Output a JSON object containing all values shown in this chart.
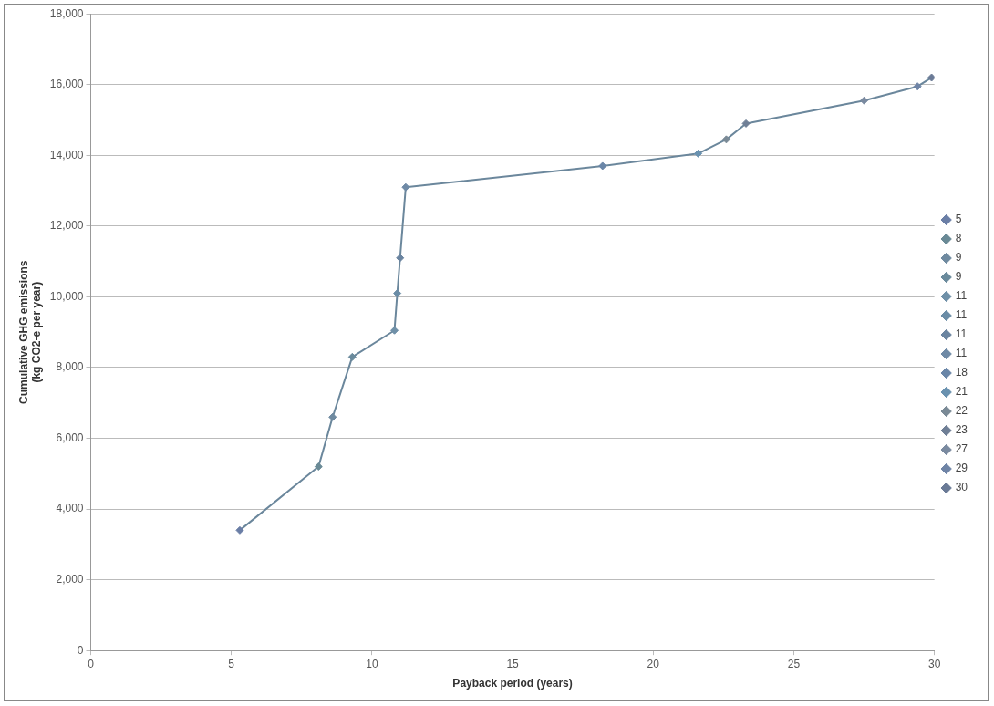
{
  "chart_data": {
    "type": "scatter",
    "xlabel": "Payback period (years)",
    "ylabel": "Cumulative GHG emissions\n(kg CO2-e per year)",
    "xlim": [
      0,
      30
    ],
    "xticks": [
      0,
      5,
      10,
      15,
      20,
      25,
      30
    ],
    "ylim": [
      0,
      18000
    ],
    "yticks": [
      {
        "value": 0,
        "label": "0"
      },
      {
        "value": 2000,
        "label": "2,000"
      },
      {
        "value": 4000,
        "label": "4,000"
      },
      {
        "value": 6000,
        "label": "6,000"
      },
      {
        "value": 8000,
        "label": "8,000"
      },
      {
        "value": 10000,
        "label": "10,000"
      },
      {
        "value": 12000,
        "label": "12,000"
      },
      {
        "value": 14000,
        "label": "14,000"
      },
      {
        "value": 16000,
        "label": "16,000"
      },
      {
        "value": 18000,
        "label": "18,000"
      }
    ],
    "grid": "y",
    "legend": "right",
    "marker": "diamond",
    "series": [
      {
        "type": "line",
        "marker": "none",
        "color": "#6b879c",
        "x": [
          5.3,
          8.1,
          8.6,
          9.3,
          10.8,
          10.9,
          11.0,
          11.2,
          18.2,
          21.6,
          22.6,
          23.3,
          27.5,
          29.4,
          29.9
        ],
        "values": [
          3400,
          5200,
          6600,
          8300,
          9050,
          10100,
          11100,
          13100,
          13700,
          14050,
          14450,
          14900,
          15550,
          15950,
          16200
        ]
      },
      {
        "name": "5",
        "color": "#6a7ea6",
        "x": [
          5.3
        ],
        "values": [
          3400
        ]
      },
      {
        "name": "8",
        "color": "#6a8a96",
        "x": [
          8.1
        ],
        "values": [
          5200
        ]
      },
      {
        "name": "9",
        "color": "#6f8aa0",
        "x": [
          8.6
        ],
        "values": [
          6600
        ]
      },
      {
        "name": "9",
        "color": "#6a8a9c",
        "x": [
          9.3
        ],
        "values": [
          8300
        ]
      },
      {
        "name": "11",
        "color": "#6f90a8",
        "x": [
          10.8
        ],
        "values": [
          9050
        ]
      },
      {
        "name": "11",
        "color": "#6a8ca6",
        "x": [
          10.9
        ],
        "values": [
          10100
        ]
      },
      {
        "name": "11",
        "color": "#6a84a0",
        "x": [
          11.0
        ],
        "values": [
          11100
        ]
      },
      {
        "name": "11",
        "color": "#6f8aa6",
        "x": [
          11.2
        ],
        "values": [
          13100
        ]
      },
      {
        "name": "18",
        "color": "#6a86a8",
        "x": [
          18.2
        ],
        "values": [
          13700
        ]
      },
      {
        "name": "21",
        "color": "#6a92b0",
        "x": [
          21.6
        ],
        "values": [
          14050
        ]
      },
      {
        "name": "22",
        "color": "#7a8a96",
        "x": [
          22.6
        ],
        "values": [
          14450
        ]
      },
      {
        "name": "23",
        "color": "#6f7f96",
        "x": [
          23.3
        ],
        "values": [
          14900
        ]
      },
      {
        "name": "27",
        "color": "#7a8aa0",
        "x": [
          27.5
        ],
        "values": [
          15550
        ]
      },
      {
        "name": "29",
        "color": "#6f84a6",
        "x": [
          29.4
        ],
        "values": [
          15950
        ]
      },
      {
        "name": "30",
        "color": "#6a7a96",
        "x": [
          29.9
        ],
        "values": [
          16200
        ]
      }
    ]
  }
}
